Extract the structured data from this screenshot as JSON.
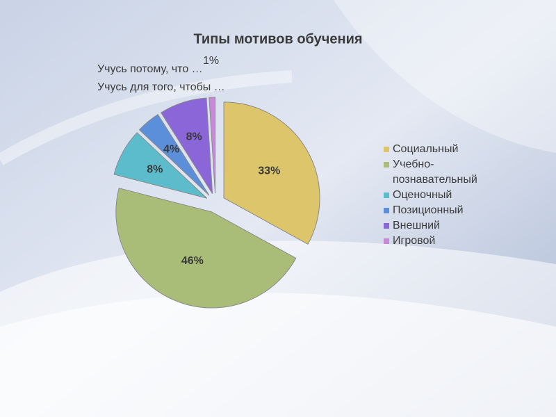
{
  "chart_data": {
    "type": "pie",
    "title": "Типы мотивов обучения",
    "annotations": [
      "Учусь потому, что …",
      "Учусь для того, чтобы …"
    ],
    "categories": [
      "Социальный",
      "Учебно-познавательный",
      "Оценочный",
      "Позиционный",
      "Внешний",
      "Игровой"
    ],
    "values": [
      33,
      46,
      8,
      4,
      8,
      1
    ],
    "value_labels": [
      "33%",
      "46%",
      "8%",
      "4%",
      "8%",
      "1%"
    ],
    "colors": [
      "#dcc56a",
      "#a9bd79",
      "#5dbccb",
      "#5b8fd9",
      "#8a66d8",
      "#c88ad8"
    ],
    "legend": "right"
  }
}
